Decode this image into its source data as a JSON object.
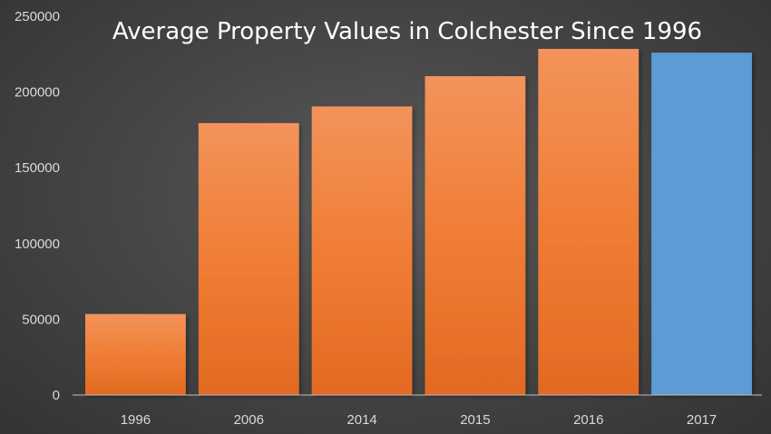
{
  "chart_data": {
    "type": "bar",
    "title": "Average Property Values in Colchester Since 1996",
    "xlabel": "",
    "ylabel": "",
    "categories": [
      "1996",
      "2006",
      "2014",
      "2015",
      "2016",
      "2017"
    ],
    "values": [
      53500,
      179500,
      190500,
      210500,
      228500,
      226000
    ],
    "ylim": [
      0,
      250000
    ],
    "yticks": [
      0,
      50000,
      100000,
      150000,
      200000,
      250000
    ],
    "ytick_labels": [
      "0",
      "50000",
      "100000",
      "150000",
      "200000",
      "250000"
    ],
    "grid": false,
    "legend": "none",
    "bar_colors": [
      "#f07f3c",
      "#f07f3c",
      "#f07f3c",
      "#f07f3c",
      "#f07f3c",
      "#5b9bd5"
    ],
    "axis_color": "#bfbfbf",
    "background_color": "#404040"
  }
}
